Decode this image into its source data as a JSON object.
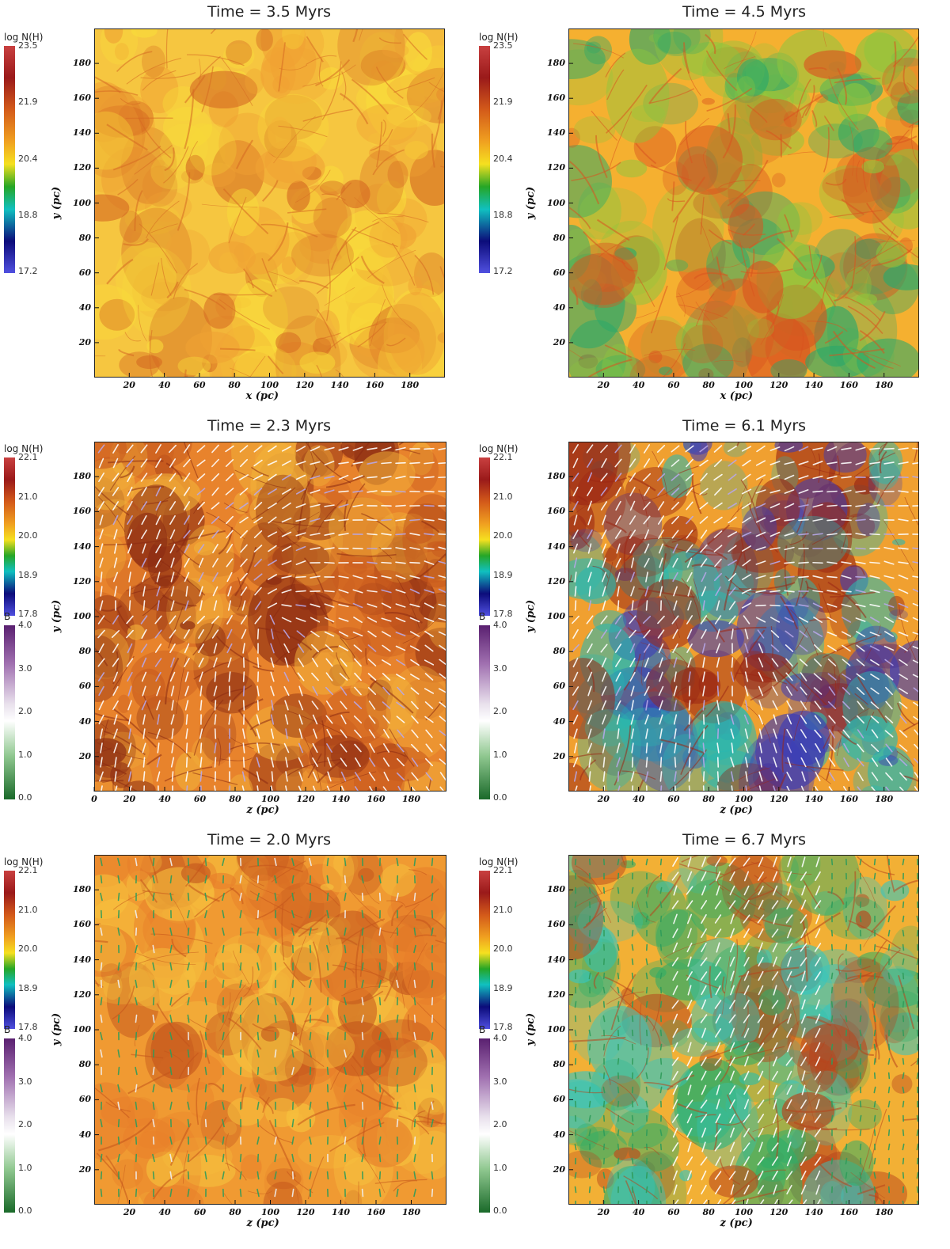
{
  "chart_data": [
    {
      "type": "heatmap",
      "title": "Time = 3.5 Myrs",
      "xlabel": "x  (pc)",
      "ylabel": "y  (pc)",
      "xlim": [
        0,
        200
      ],
      "ylim": [
        0,
        200
      ],
      "xticks": [
        "20",
        "40",
        "60",
        "80",
        "100",
        "120",
        "140",
        "160",
        "180"
      ],
      "yticks": [
        "20",
        "40",
        "60",
        "80",
        "100",
        "120",
        "140",
        "160",
        "180"
      ],
      "colorbars": [
        {
          "label": "log N(H)",
          "ticks": [
            "23.5",
            "21.9",
            "20.4",
            "18.8",
            "17.2"
          ],
          "scheme": "nh"
        }
      ],
      "vectors": "none",
      "palette": {
        "base": "#f6c640",
        "mid": "#f0a233",
        "dark": "#d56a22",
        "deep": "#f9dc3a"
      }
    },
    {
      "type": "heatmap",
      "title": "Time = 4.5 Myrs",
      "xlabel": "x  (pc)",
      "ylabel": "y  (pc)",
      "xlim": [
        0,
        200
      ],
      "ylim": [
        0,
        200
      ],
      "xticks": [
        "20",
        "40",
        "60",
        "80",
        "100",
        "120",
        "140",
        "160",
        "180"
      ],
      "yticks": [
        "20",
        "40",
        "60",
        "80",
        "100",
        "120",
        "140",
        "160",
        "180"
      ],
      "colorbars": [
        {
          "label": "log N(H)",
          "ticks": [
            "23.5",
            "21.9",
            "20.4",
            "18.8",
            "17.2"
          ],
          "scheme": "nh"
        }
      ],
      "vectors": "none",
      "palette": {
        "base": "#f5b030",
        "mid": "#8cc63e",
        "dark": "#d9541f",
        "deep": "#2aa86a"
      }
    },
    {
      "type": "heatmap",
      "title": "Time = 2.3 Myrs",
      "xlabel": "z  (pc)",
      "ylabel": "y  (pc)",
      "xlim": [
        0,
        200
      ],
      "ylim": [
        0,
        200
      ],
      "xticks": [
        "0",
        "20",
        "40",
        "60",
        "80",
        "100",
        "120",
        "140",
        "160",
        "180"
      ],
      "yticks": [
        "20",
        "40",
        "60",
        "80",
        "100",
        "120",
        "140",
        "160",
        "180"
      ],
      "colorbars": [
        {
          "label": "log N(H)",
          "ticks": [
            "22.1",
            "21.0",
            "20.0",
            "18.9",
            "17.8"
          ],
          "scheme": "nh"
        },
        {
          "label": "B",
          "ticks": [
            "4.0",
            "3.0",
            "2.0",
            "1.0",
            "0.0"
          ],
          "scheme": "b"
        }
      ],
      "vectors": "dense-white",
      "palette": {
        "base": "#e8832c",
        "mid": "#c85a1e",
        "dark": "#8a2a12",
        "deep": "#f2b13a"
      }
    },
    {
      "type": "heatmap",
      "title": "Time = 6.1 Myrs",
      "xlabel": "z  (pc)",
      "ylabel": "y  (pc)",
      "xlim": [
        0,
        200
      ],
      "ylim": [
        0,
        200
      ],
      "xticks": [
        "20",
        "40",
        "60",
        "80",
        "100",
        "120",
        "140",
        "160",
        "180"
      ],
      "yticks": [
        "20",
        "40",
        "60",
        "80",
        "100",
        "120",
        "140",
        "160",
        "180"
      ],
      "colorbars": [
        {
          "label": "log N(H)",
          "ticks": [
            "22.1",
            "21.0",
            "20.0",
            "18.9",
            "17.8"
          ],
          "scheme": "nh"
        },
        {
          "label": "B",
          "ticks": [
            "4.0",
            "3.0",
            "2.0",
            "1.0",
            "0.0"
          ],
          "scheme": "b"
        }
      ],
      "vectors": "dense-white",
      "palette": {
        "base": "#f0a030",
        "mid": "#2ab8b0",
        "dark": "#9a2614",
        "deep": "#3a3ab8"
      }
    },
    {
      "type": "heatmap",
      "title": "Time = 2.0 Myrs",
      "xlabel": "z  (pc)",
      "ylabel": "y  (pc)",
      "xlim": [
        0,
        200
      ],
      "ylim": [
        0,
        200
      ],
      "xticks": [
        "20",
        "40",
        "60",
        "80",
        "100",
        "120",
        "140",
        "160",
        "180"
      ],
      "yticks": [
        "20",
        "40",
        "60",
        "80",
        "100",
        "120",
        "140",
        "160",
        "180"
      ],
      "colorbars": [
        {
          "label": "log N(H)",
          "ticks": [
            "22.1",
            "21.0",
            "20.0",
            "18.9",
            "17.8"
          ],
          "scheme": "nh"
        },
        {
          "label": "B",
          "ticks": [
            "4.0",
            "3.0",
            "2.0",
            "1.0",
            "0.0"
          ],
          "scheme": "b"
        }
      ],
      "vectors": "sparse-green",
      "palette": {
        "base": "#f09a32",
        "mid": "#e77e2a",
        "dark": "#c2531c",
        "deep": "#f6c23e"
      }
    },
    {
      "type": "heatmap",
      "title": "Time = 6.7 Myrs",
      "xlabel": "z  (pc)",
      "ylabel": "y  (pc)",
      "xlim": [
        0,
        200
      ],
      "ylim": [
        0,
        200
      ],
      "xticks": [
        "20",
        "40",
        "60",
        "80",
        "100",
        "120",
        "140",
        "160",
        "180"
      ],
      "yticks": [
        "20",
        "40",
        "60",
        "80",
        "100",
        "120",
        "140",
        "160",
        "180"
      ],
      "colorbars": [
        {
          "label": "log N(H)",
          "ticks": [
            "22.1",
            "21.0",
            "20.0",
            "18.9",
            "17.8"
          ],
          "scheme": "nh"
        },
        {
          "label": "B",
          "ticks": [
            "4.0",
            "3.0",
            "2.0",
            "1.0",
            "0.0"
          ],
          "scheme": "b"
        }
      ],
      "vectors": "mixed",
      "palette": {
        "base": "#f2b035",
        "mid": "#36c6c0",
        "dark": "#b8441c",
        "deep": "#2eae68"
      }
    }
  ]
}
